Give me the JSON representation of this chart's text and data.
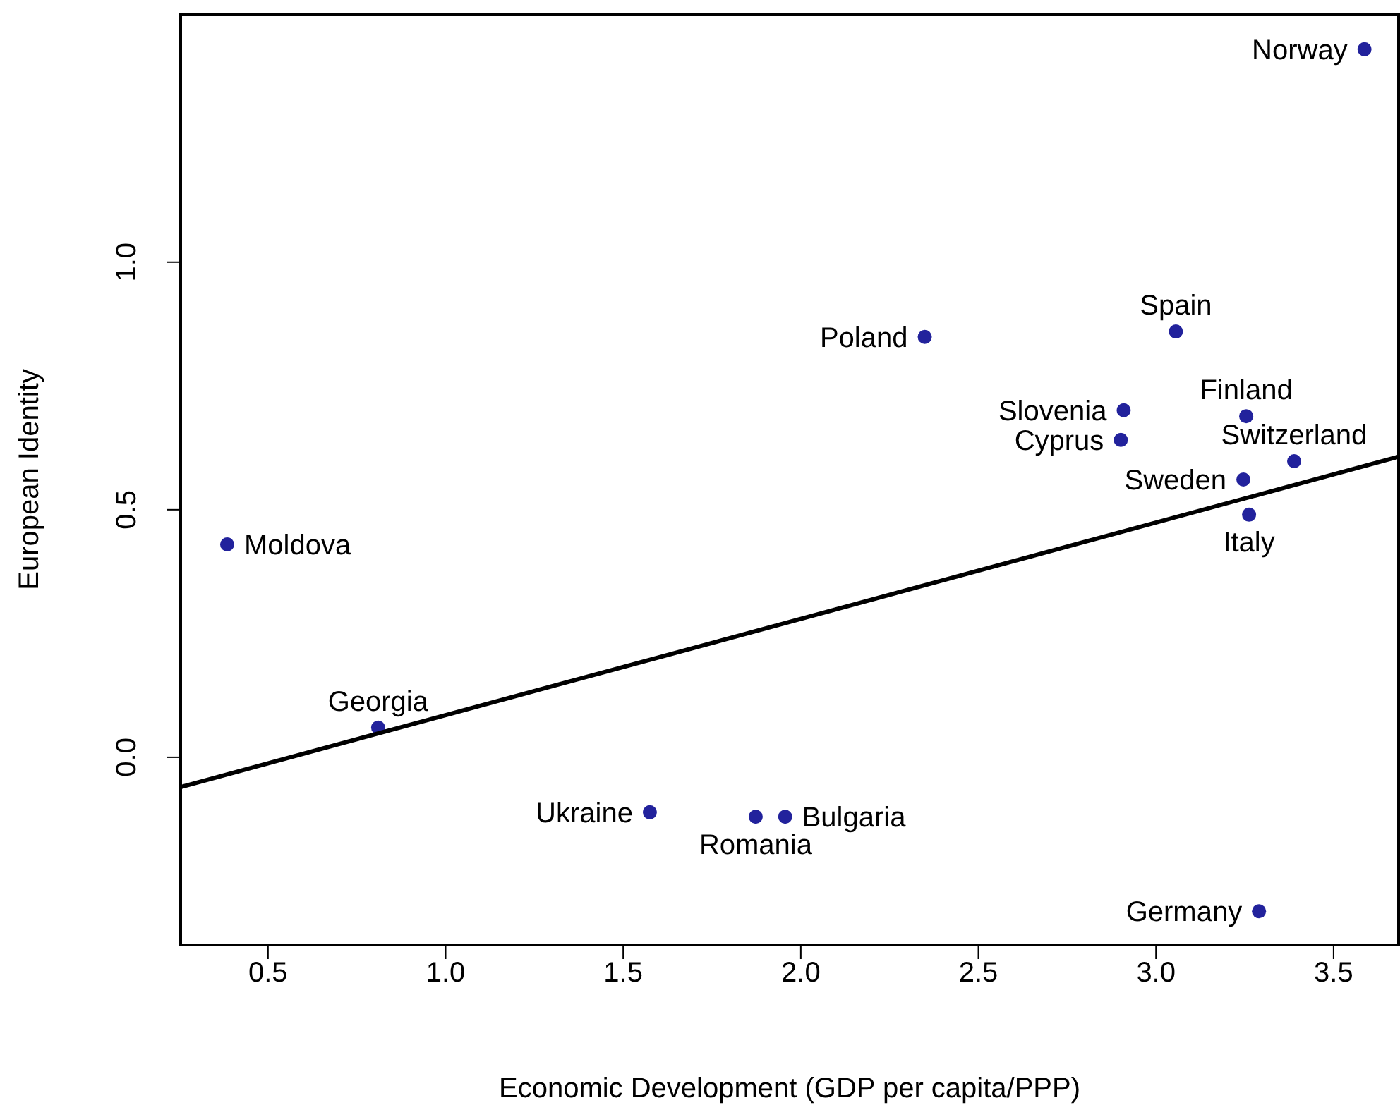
{
  "chart_data": {
    "type": "scatter",
    "xlabel": "Economic Development (GDP per capita/PPP)",
    "ylabel": "European Identity",
    "xlim": [
      0.254,
      3.683
    ],
    "ylim": [
      -0.379,
      1.501
    ],
    "xticks": [
      0.5,
      {
        "value": 1,
        "label": "1.0"
      },
      1.5,
      {
        "value": 2,
        "label": "2.0"
      },
      2.5,
      {
        "value": 3,
        "label": "3.0"
      },
      3.5
    ],
    "yticks": [
      {
        "value": 0,
        "label": "0.0"
      },
      0.5,
      {
        "value": 1,
        "label": "1.0"
      }
    ],
    "marker": "circle",
    "series": [
      {
        "color": "#22229c",
        "x": [
          3.587,
          3.056,
          2.349,
          2.909,
          2.901,
          3.254,
          3.389,
          3.246,
          3.262,
          0.385,
          0.81,
          1.575,
          1.873,
          1.956,
          3.29
        ],
        "values": [
          1.43,
          0.86,
          0.849,
          0.701,
          0.641,
          0.689,
          0.598,
          0.561,
          0.49,
          0.43,
          0.06,
          -0.111,
          -0.12,
          -0.12,
          -0.311
        ]
      },
      {
        "type": "line",
        "color": "#000000",
        "x": [
          0.254,
          3.683
        ],
        "values": [
          -0.06,
          0.607
        ],
        "marker": "none",
        "line_style": "solid"
      }
    ],
    "annotations": [
      {
        "text": "Norway",
        "x": 3.587,
        "y": 1.43
      },
      {
        "text": "Spain",
        "x": 3.056,
        "y": 0.86
      },
      {
        "text": "Poland",
        "x": 2.349,
        "y": 0.849
      },
      {
        "text": "Slovenia",
        "x": 2.909,
        "y": 0.701
      },
      {
        "text": "Cyprus",
        "x": 2.901,
        "y": 0.641
      },
      {
        "text": "Finland",
        "x": 3.254,
        "y": 0.689
      },
      {
        "text": "Switzerland",
        "x": 3.389,
        "y": 0.598
      },
      {
        "text": "Sweden",
        "x": 3.246,
        "y": 0.561
      },
      {
        "text": "Italy",
        "x": 3.262,
        "y": 0.49
      },
      {
        "text": "Moldova",
        "x": 0.385,
        "y": 0.43
      },
      {
        "text": "Georgia",
        "x": 0.81,
        "y": 0.06
      },
      {
        "text": "Ukraine",
        "x": 1.575,
        "y": -0.111
      },
      {
        "text": "Romania",
        "x": 1.873,
        "y": -0.12
      },
      {
        "text": "Bulgaria",
        "x": 1.956,
        "y": -0.12
      },
      {
        "text": "Germany",
        "x": 3.29,
        "y": -0.311
      }
    ]
  }
}
